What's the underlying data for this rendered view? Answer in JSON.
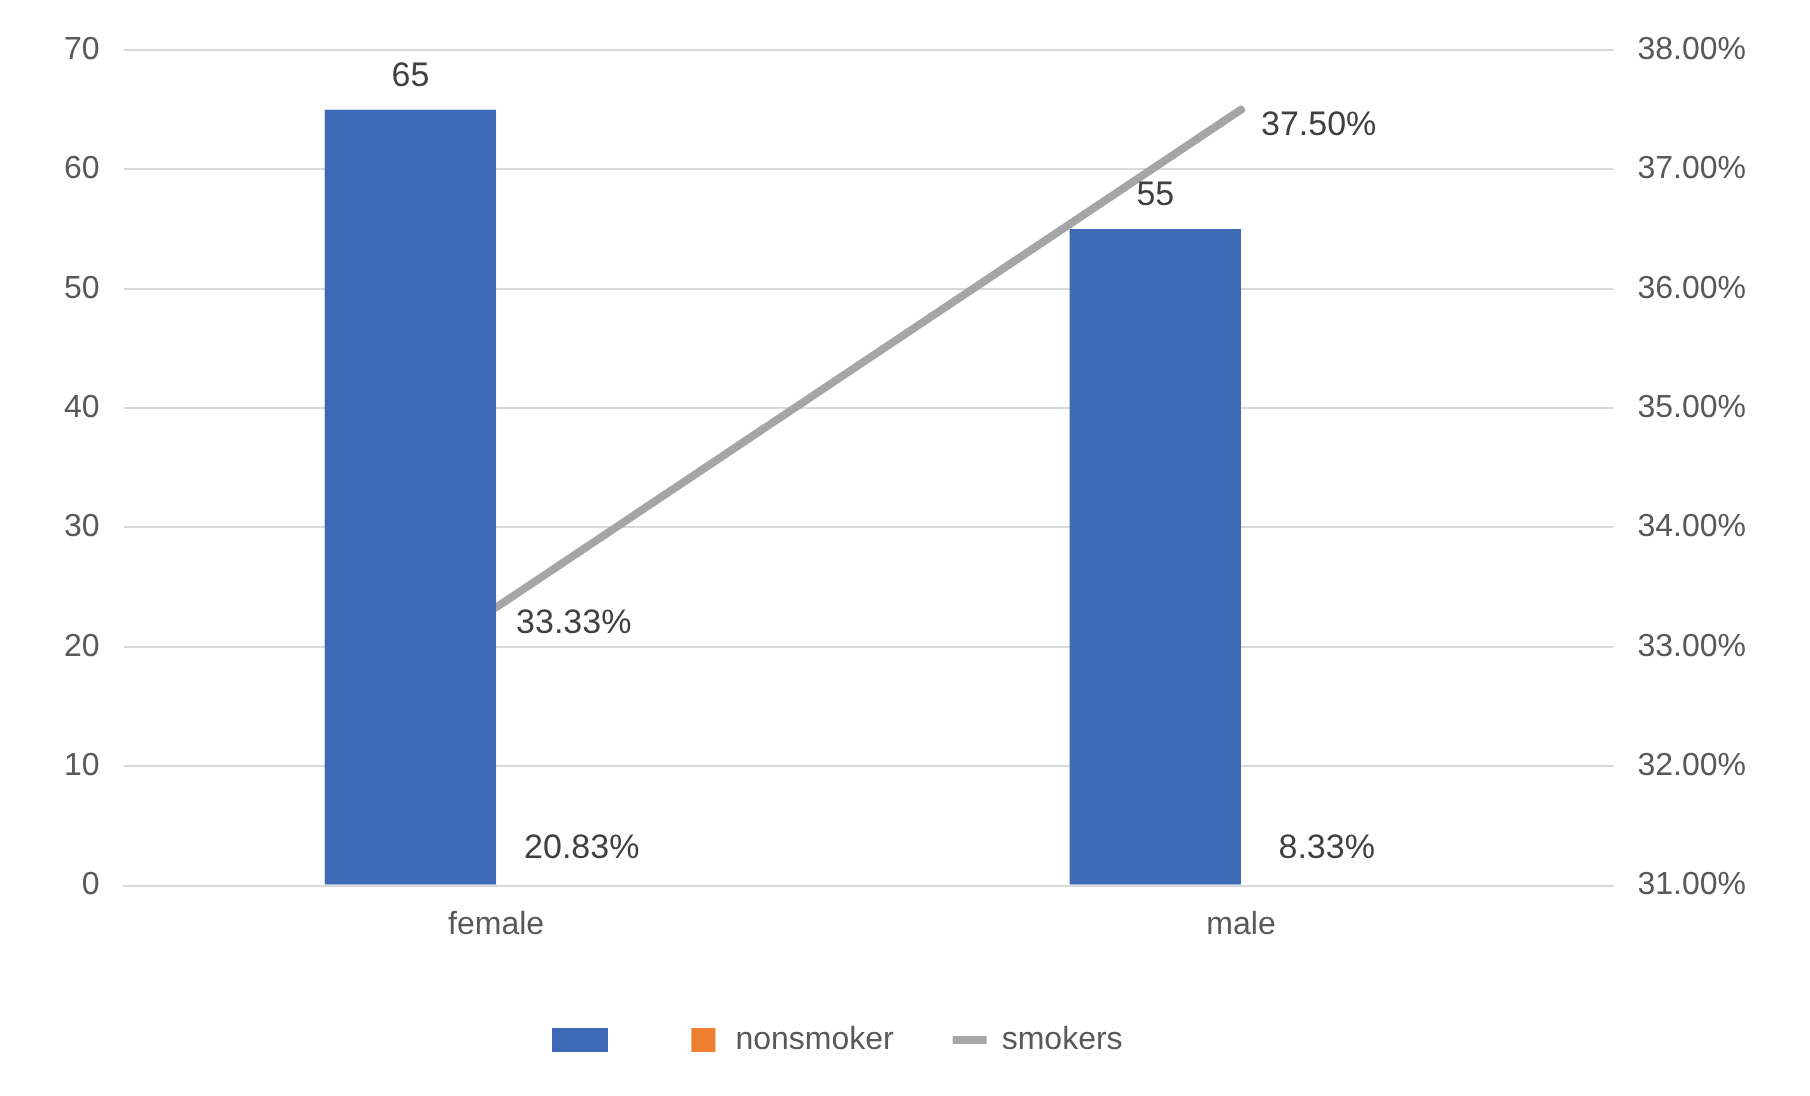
{
  "chart_data": {
    "type": "bar",
    "categories": [
      "female",
      "male"
    ],
    "series": [
      {
        "color": "#3e6ab5",
        "values": [
          65,
          55
        ],
        "value_labels": [
          "65",
          "55"
        ]
      },
      {
        "name": "nonsmoker",
        "color": "#ed7d31",
        "axis": "y2",
        "values": [
          null,
          null
        ],
        "value_labels": [
          "20.83%",
          "8.33%"
        ]
      },
      {
        "name": "smokers",
        "type": "line",
        "color": "#a5a5a5",
        "axis": "y2",
        "values": [
          33.33,
          37.5
        ],
        "value_labels": [
          "33.33%",
          "37.50%"
        ]
      }
    ],
    "ylim": [
      0,
      70
    ],
    "yticks": [
      0,
      10,
      20,
      30,
      40,
      50,
      60,
      70
    ],
    "y2lim": [
      31,
      38
    ],
    "y2ticks": [
      {
        "value": 31,
        "label": "31.00%"
      },
      {
        "value": 32,
        "label": "32.00%"
      },
      {
        "value": 33,
        "label": "33.00%"
      },
      {
        "value": 34,
        "label": "34.00%"
      },
      {
        "value": 35,
        "label": "35.00%"
      },
      {
        "value": 36,
        "label": "36.00%"
      },
      {
        "value": 37,
        "label": "37.00%"
      },
      {
        "value": 38,
        "label": "38.00%"
      }
    ],
    "grid": "y",
    "legend": "bottom",
    "marker": "none",
    "line_style": "solid"
  }
}
